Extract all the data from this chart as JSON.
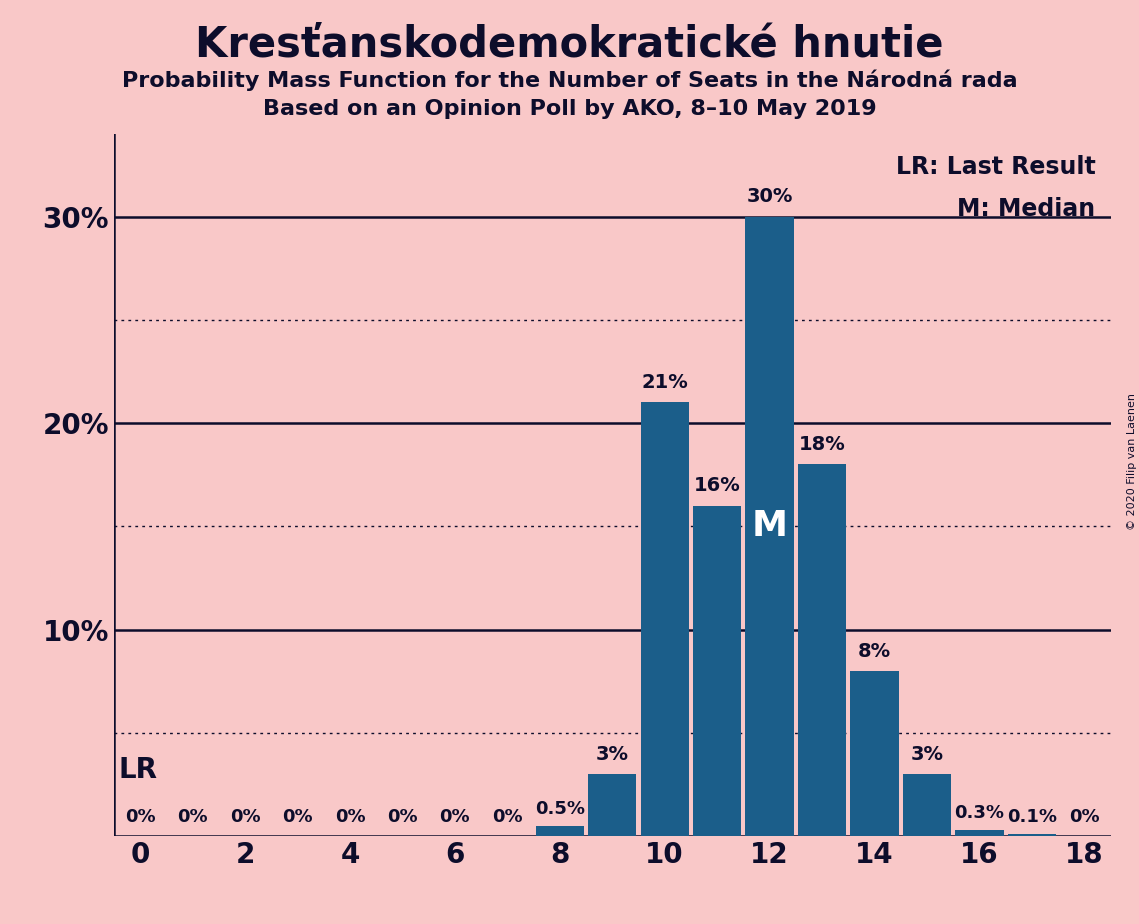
{
  "title": "Kresťanskodemokratické hnutie",
  "subtitle1": "Probability Mass Function for the Number of Seats in the Národná rada",
  "subtitle2": "Based on an Opinion Poll by AKO, 8–10 May 2019",
  "copyright": "© 2020 Filip van Laenen",
  "seats": [
    0,
    1,
    2,
    3,
    4,
    5,
    6,
    7,
    8,
    9,
    10,
    11,
    12,
    13,
    14,
    15,
    16,
    17,
    18
  ],
  "probabilities": [
    0.0,
    0.0,
    0.0,
    0.0,
    0.0,
    0.0,
    0.0,
    0.0,
    0.5,
    3.0,
    21.0,
    16.0,
    30.0,
    18.0,
    8.0,
    3.0,
    0.3,
    0.1,
    0.0
  ],
  "bar_color": "#1b5e8a",
  "background_color": "#f9c8c8",
  "text_color": "#0d0d2b",
  "median_seat": 12,
  "dotted_lines": [
    5,
    15,
    25
  ],
  "solid_lines": [
    10,
    20,
    30
  ],
  "xlim": [
    -0.5,
    18.5
  ],
  "ylim": [
    0,
    34
  ],
  "legend_lr": "LR: Last Result",
  "legend_m": "M: Median",
  "label_lr": "LR",
  "label_m": "M",
  "bar_labels": [
    "0%",
    "0%",
    "0%",
    "0%",
    "0%",
    "0%",
    "0%",
    "0%",
    "0.5%",
    "3%",
    "21%",
    "16%",
    "30%",
    "18%",
    "8%",
    "3%",
    "0.3%",
    "0.1%",
    "0%"
  ]
}
